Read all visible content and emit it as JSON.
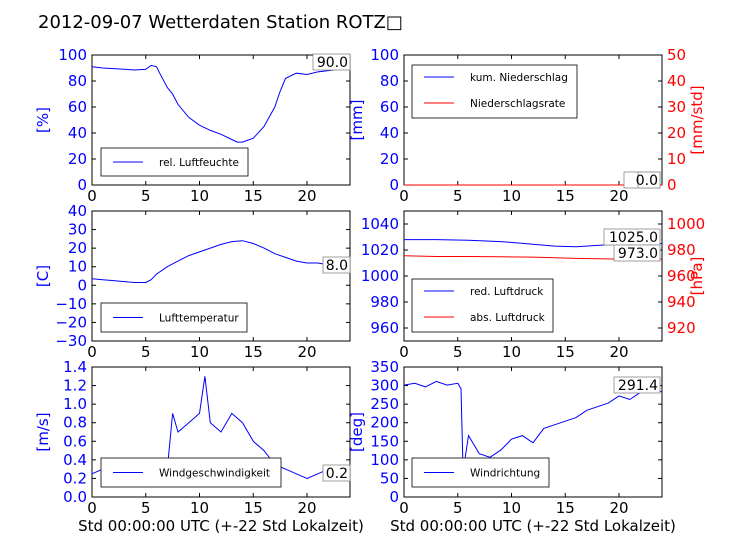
{
  "title": "2012-09-07 Wetterdaten Station ROTZ□",
  "colors": {
    "blue": "#0000ff",
    "red": "#ff0000",
    "black": "#000000"
  },
  "chart_data": [
    {
      "type": "line",
      "ylabel": "[%]",
      "xlim": [
        0,
        24
      ],
      "ylim": [
        0,
        100
      ],
      "xticks": [
        "0",
        "5",
        "10",
        "15",
        "20"
      ],
      "yticks": [
        "0",
        "20",
        "40",
        "60",
        "80",
        "100"
      ],
      "legend": "bottom-left",
      "readout": "90.0",
      "series": [
        {
          "name": "rel. Luftfeuchte",
          "color": "#0000ff",
          "x": [
            0,
            1,
            2,
            3,
            4,
            5,
            5.5,
            6,
            6.3,
            7,
            7.5,
            8,
            9,
            10,
            11,
            12,
            13,
            13.5,
            14,
            15,
            16,
            17,
            17.5,
            18,
            19,
            20,
            21,
            22,
            23,
            24
          ],
          "y": [
            91,
            90,
            89.5,
            89,
            88.5,
            89,
            92,
            91,
            86,
            75,
            70,
            62,
            52,
            46,
            42,
            39,
            35,
            33,
            33,
            36,
            45,
            60,
            72,
            82,
            86,
            85,
            87,
            88,
            89,
            90
          ]
        }
      ]
    },
    {
      "type": "line",
      "ylabel": "[mm]",
      "ylabel2": "[mm/std]",
      "xlim": [
        0,
        24
      ],
      "ylim": [
        0,
        100
      ],
      "ylim2": [
        0,
        50
      ],
      "xticks": [
        "0",
        "5",
        "10",
        "15",
        "20"
      ],
      "yticks": [
        "0",
        "20",
        "40",
        "60",
        "80",
        "100"
      ],
      "yticks2": [
        "0",
        "10",
        "20",
        "30",
        "40",
        "50"
      ],
      "legend": "top-left",
      "readouts": [
        "0.0",
        "0.0"
      ],
      "series": [
        {
          "name": "kum. Niederschlag",
          "color": "#0000ff",
          "x": [
            0,
            24
          ],
          "y": [
            0,
            0
          ]
        },
        {
          "name": "Niederschlagsrate",
          "color": "#ff0000",
          "axis": "right",
          "x": [
            0,
            24
          ],
          "y": [
            0,
            0
          ]
        }
      ]
    },
    {
      "type": "line",
      "ylabel": "[C]",
      "xlim": [
        0,
        24
      ],
      "ylim": [
        -30,
        40
      ],
      "xticks": [
        "0",
        "5",
        "10",
        "15",
        "20"
      ],
      "yticks": [
        "−30",
        "−20",
        "−10",
        "0",
        "10",
        "20",
        "30",
        "40"
      ],
      "legend": "bottom-left",
      "readout": "8.0",
      "series": [
        {
          "name": "Lufttemperatur",
          "color": "#0000ff",
          "x": [
            0,
            1,
            2,
            3,
            4,
            5,
            5.5,
            6,
            7,
            8,
            9,
            10,
            11,
            12,
            13,
            14,
            15,
            16,
            17,
            18,
            19,
            20,
            21,
            22,
            23,
            24
          ],
          "y": [
            3.5,
            3,
            2.5,
            2,
            1.5,
            1.5,
            3,
            6,
            10,
            13,
            16,
            18,
            20,
            22,
            23.5,
            24,
            22.5,
            20,
            17,
            15,
            13,
            12,
            12,
            11,
            10,
            8
          ]
        }
      ]
    },
    {
      "type": "line",
      "ylabel2": "[hPa]",
      "xlim": [
        0,
        24
      ],
      "ylim": [
        950,
        1050
      ],
      "ylim2": [
        910,
        1010
      ],
      "xticks": [
        "0",
        "5",
        "10",
        "15",
        "20"
      ],
      "yticks": [
        "960",
        "980",
        "1000",
        "1020",
        "1040"
      ],
      "yticks2": [
        "920",
        "940",
        "960",
        "980",
        "1000"
      ],
      "legend": "bottom-left",
      "readouts": [
        "1025.0",
        "973.0"
      ],
      "series": [
        {
          "name": "red. Luftdruck",
          "color": "#0000ff",
          "x": [
            0,
            3,
            6,
            9,
            12,
            14,
            16,
            18,
            20,
            22,
            24
          ],
          "y": [
            1028,
            1028,
            1027.5,
            1026.5,
            1024.5,
            1023,
            1022.5,
            1023.5,
            1024.5,
            1025,
            1025
          ]
        },
        {
          "name": "abs. Luftdruck",
          "color": "#ff0000",
          "axis": "right",
          "x": [
            0,
            3,
            6,
            9,
            12,
            14,
            16,
            18,
            20,
            22,
            24
          ],
          "y": [
            975.5,
            975,
            975,
            974.8,
            974.5,
            974,
            973.5,
            973.2,
            973,
            973,
            973
          ]
        }
      ]
    },
    {
      "type": "line",
      "ylabel": "[m/s]",
      "xlabel": "Std 00:00:00 UTC (+-22 Std Lokalzeit)",
      "xlim": [
        0,
        24
      ],
      "ylim": [
        0,
        1.4
      ],
      "xticks": [
        "0",
        "5",
        "10",
        "15",
        "20"
      ],
      "yticks": [
        "0.0",
        "0.2",
        "0.4",
        "0.6",
        "0.8",
        "1.0",
        "1.2",
        "1.4"
      ],
      "legend": "bottom-center",
      "readout": "0.2",
      "series": [
        {
          "name": "Windgeschwindigkeit",
          "color": "#0000ff",
          "x": [
            0,
            1,
            2,
            3,
            4,
            5,
            6,
            6.5,
            7,
            7.5,
            8,
            9,
            10,
            10.5,
            11,
            12,
            13,
            14,
            15,
            16,
            17,
            18,
            19,
            20,
            21,
            22,
            23,
            24
          ],
          "y": [
            0.25,
            0.3,
            0.2,
            0.3,
            0.25,
            0.3,
            0.25,
            0.3,
            0.3,
            0.9,
            0.7,
            0.8,
            0.9,
            1.3,
            0.8,
            0.7,
            0.9,
            0.8,
            0.6,
            0.5,
            0.35,
            0.3,
            0.25,
            0.2,
            0.25,
            0.3,
            0.2,
            0.2
          ]
        }
      ]
    },
    {
      "type": "line",
      "ylabel": "[deg]",
      "xlabel": "Std 00:00:00 UTC (+-22 Std Lokalzeit)",
      "xlim": [
        0,
        24
      ],
      "ylim": [
        0,
        360
      ],
      "xticks": [
        "0",
        "5",
        "10",
        "15",
        "20"
      ],
      "yticks": [
        "0",
        "50",
        "100",
        "150",
        "200",
        "250",
        "300",
        "350"
      ],
      "legend": "bottom-left",
      "readout": "291.4",
      "series": [
        {
          "name": "Windrichtung",
          "color": "#0000ff",
          "x": [
            0,
            1,
            2,
            3,
            4,
            5,
            5.3,
            5.5,
            6,
            7,
            8,
            9,
            10,
            11,
            12,
            13,
            14,
            15,
            16,
            17,
            18,
            19,
            20,
            21,
            22,
            23,
            24
          ],
          "y": [
            310,
            315,
            305,
            320,
            310,
            315,
            300,
            70,
            170,
            120,
            110,
            130,
            160,
            170,
            150,
            190,
            200,
            210,
            220,
            240,
            250,
            260,
            280,
            270,
            290,
            300,
            291
          ]
        }
      ]
    }
  ]
}
